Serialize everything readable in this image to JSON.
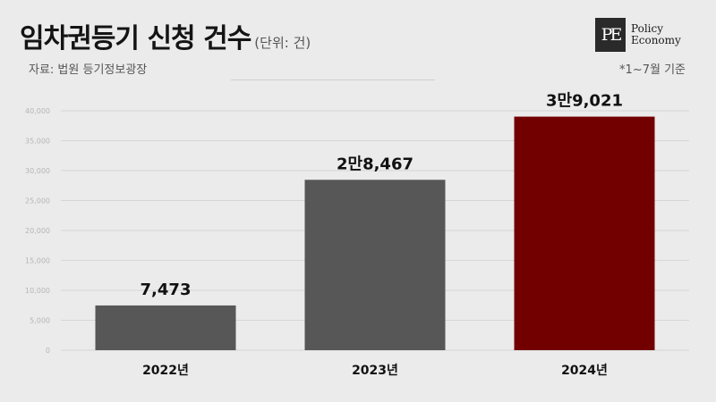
{
  "header": {
    "title": "임차권등기 신청 건수",
    "unit": "(단위: 건)",
    "source": "자료: 법원 등기정보광장",
    "note": "*1~7월 기준"
  },
  "logo": {
    "mark": "PE",
    "line1": "Policy",
    "line2": "Economy"
  },
  "colors": {
    "default_bar": "#575757",
    "highlight_bar": "#720000",
    "gridline": "#d6d6d6",
    "tick_text": "#b5b5b5"
  },
  "chart_data": {
    "type": "bar",
    "title": "임차권등기 신청 건수",
    "categories": [
      "2022년",
      "2023년",
      "2024년"
    ],
    "values": [
      7473,
      28467,
      39021
    ],
    "data_labels": [
      "7,473",
      "2만8,467",
      "3만9,021"
    ],
    "highlight_index": 2,
    "ylim": [
      0,
      40000
    ],
    "yticks": [
      0,
      5000,
      10000,
      15000,
      20000,
      25000,
      30000,
      35000,
      40000
    ],
    "ytick_labels": [
      "0",
      "5,000",
      "10,000",
      "15,000",
      "20,000",
      "25,000",
      "30,000",
      "35,000",
      "40,000"
    ],
    "grid": true,
    "legend": "none"
  }
}
